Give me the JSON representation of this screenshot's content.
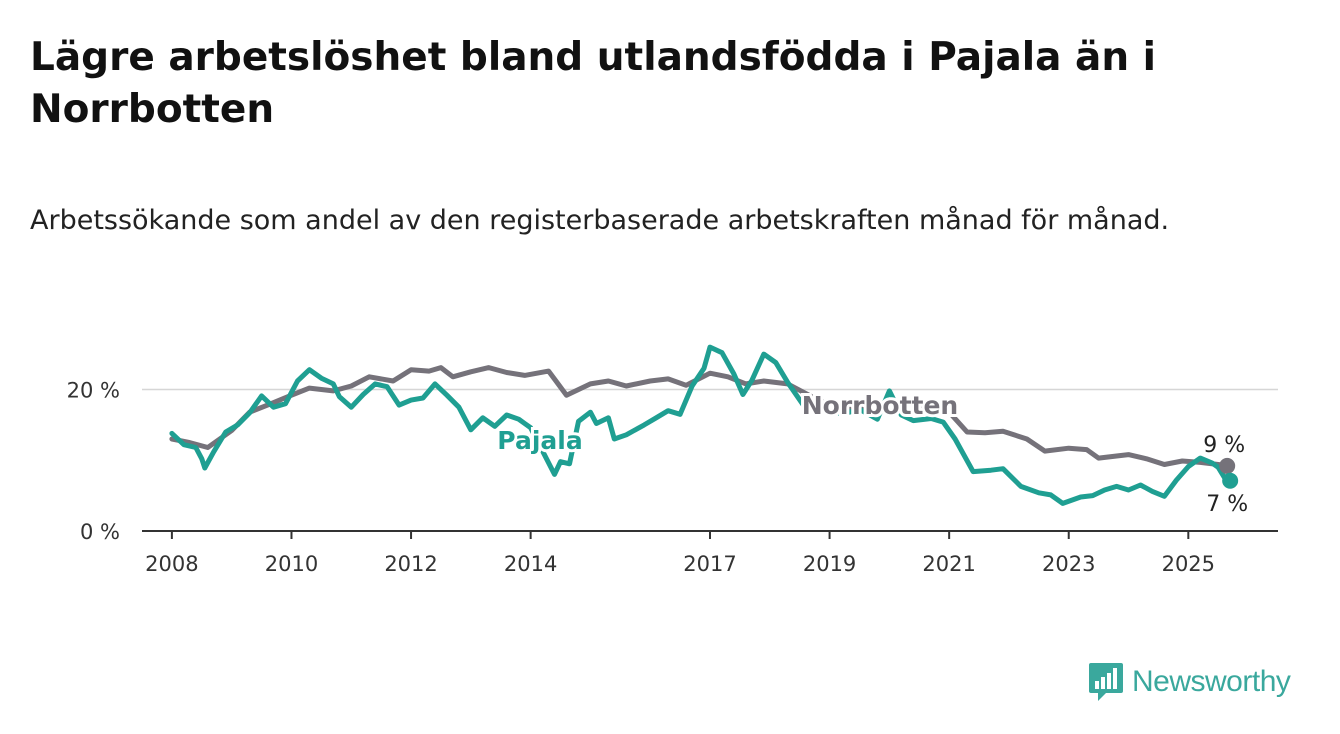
{
  "chart_data": {
    "type": "line",
    "title": "Lägre arbetslöshet bland utlandsfödda i Pajala än i Norrbotten",
    "subtitle": "Arbetssökande som andel av den registerbaserade arbetskraften månad för månad.",
    "xlabel": "",
    "ylabel": "",
    "x_ticks": [
      "2008",
      "2010",
      "2012",
      "2014",
      "2017",
      "2019",
      "2021",
      "2023",
      "2025"
    ],
    "y_ticks": [
      "0 %",
      "20 %"
    ],
    "ylim": [
      0,
      27
    ],
    "xlim": [
      2007.5,
      2026.5
    ],
    "grid": "horizontal",
    "series": [
      {
        "name": "Norrbotten",
        "color": "#75727a",
        "end_label": "9 %",
        "points": [
          [
            2008.0,
            13.0
          ],
          [
            2008.3,
            12.5
          ],
          [
            2008.6,
            11.8
          ],
          [
            2009.0,
            14.2
          ],
          [
            2009.3,
            16.8
          ],
          [
            2009.6,
            17.8
          ],
          [
            2010.0,
            19.2
          ],
          [
            2010.3,
            20.2
          ],
          [
            2010.7,
            19.8
          ],
          [
            2011.0,
            20.5
          ],
          [
            2011.3,
            21.8
          ],
          [
            2011.7,
            21.2
          ],
          [
            2012.0,
            22.8
          ],
          [
            2012.3,
            22.6
          ],
          [
            2012.5,
            23.1
          ],
          [
            2012.7,
            21.8
          ],
          [
            2013.0,
            22.5
          ],
          [
            2013.3,
            23.1
          ],
          [
            2013.6,
            22.4
          ],
          [
            2013.9,
            22.0
          ],
          [
            2014.3,
            22.6
          ],
          [
            2014.6,
            19.2
          ],
          [
            2015.0,
            20.8
          ],
          [
            2015.3,
            21.2
          ],
          [
            2015.6,
            20.5
          ],
          [
            2016.0,
            21.2
          ],
          [
            2016.3,
            21.5
          ],
          [
            2016.6,
            20.6
          ],
          [
            2017.0,
            22.3
          ],
          [
            2017.3,
            21.8
          ],
          [
            2017.6,
            20.8
          ],
          [
            2017.9,
            21.2
          ],
          [
            2018.3,
            20.8
          ],
          [
            2018.7,
            19.0
          ],
          [
            2019.0,
            17.8
          ],
          [
            2019.4,
            17.3
          ],
          [
            2019.8,
            17.8
          ],
          [
            2020.2,
            18.2
          ],
          [
            2020.6,
            17.6
          ],
          [
            2021.0,
            16.8
          ],
          [
            2021.3,
            14.0
          ],
          [
            2021.6,
            13.9
          ],
          [
            2021.9,
            14.1
          ],
          [
            2022.3,
            13.0
          ],
          [
            2022.6,
            11.3
          ],
          [
            2023.0,
            11.7
          ],
          [
            2023.3,
            11.5
          ],
          [
            2023.5,
            10.3
          ],
          [
            2023.8,
            10.6
          ],
          [
            2024.0,
            10.8
          ],
          [
            2024.3,
            10.2
          ],
          [
            2024.6,
            9.4
          ],
          [
            2024.9,
            9.9
          ],
          [
            2025.2,
            9.7
          ],
          [
            2025.5,
            9.4
          ],
          [
            2025.65,
            9.2
          ]
        ]
      },
      {
        "name": "Pajala",
        "color": "#1f9f92",
        "end_label": "7 %",
        "points": [
          [
            2008.0,
            13.8
          ],
          [
            2008.2,
            12.2
          ],
          [
            2008.4,
            11.8
          ],
          [
            2008.5,
            10.2
          ],
          [
            2008.55,
            8.9
          ],
          [
            2008.7,
            11.2
          ],
          [
            2008.9,
            14.0
          ],
          [
            2009.1,
            15.0
          ],
          [
            2009.3,
            16.7
          ],
          [
            2009.5,
            19.1
          ],
          [
            2009.7,
            17.5
          ],
          [
            2009.9,
            18.0
          ],
          [
            2010.1,
            21.2
          ],
          [
            2010.3,
            22.8
          ],
          [
            2010.5,
            21.6
          ],
          [
            2010.7,
            20.8
          ],
          [
            2010.8,
            19.0
          ],
          [
            2011.0,
            17.5
          ],
          [
            2011.2,
            19.3
          ],
          [
            2011.4,
            20.8
          ],
          [
            2011.6,
            20.4
          ],
          [
            2011.8,
            17.8
          ],
          [
            2012.0,
            18.5
          ],
          [
            2012.2,
            18.8
          ],
          [
            2012.4,
            20.8
          ],
          [
            2012.6,
            19.2
          ],
          [
            2012.8,
            17.5
          ],
          [
            2013.0,
            14.3
          ],
          [
            2013.2,
            16.0
          ],
          [
            2013.4,
            14.8
          ],
          [
            2013.6,
            16.4
          ],
          [
            2013.8,
            15.8
          ],
          [
            2013.9,
            15.2
          ],
          [
            2014.0,
            14.6
          ],
          [
            2014.4,
            8.0
          ],
          [
            2014.5,
            9.8
          ],
          [
            2014.65,
            9.5
          ],
          [
            2014.8,
            15.5
          ],
          [
            2015.0,
            16.8
          ],
          [
            2015.1,
            15.2
          ],
          [
            2015.3,
            16.0
          ],
          [
            2015.4,
            13.0
          ],
          [
            2015.6,
            13.6
          ],
          [
            2015.9,
            15.0
          ],
          [
            2016.1,
            16.0
          ],
          [
            2016.3,
            17.0
          ],
          [
            2016.5,
            16.5
          ],
          [
            2016.7,
            20.5
          ],
          [
            2016.9,
            23.0
          ],
          [
            2017.0,
            26.0
          ],
          [
            2017.2,
            25.2
          ],
          [
            2017.4,
            22.2
          ],
          [
            2017.55,
            19.3
          ],
          [
            2017.7,
            21.3
          ],
          [
            2017.9,
            25.0
          ],
          [
            2018.1,
            23.8
          ],
          [
            2018.3,
            21.0
          ],
          [
            2018.6,
            17.3
          ],
          [
            2018.9,
            17.8
          ],
          [
            2019.2,
            16.5
          ],
          [
            2019.5,
            17.2
          ],
          [
            2019.8,
            15.8
          ],
          [
            2020.0,
            19.8
          ],
          [
            2020.2,
            16.4
          ],
          [
            2020.4,
            15.6
          ],
          [
            2020.7,
            15.9
          ],
          [
            2020.9,
            15.4
          ],
          [
            2021.1,
            13.0
          ],
          [
            2021.4,
            8.4
          ],
          [
            2021.7,
            8.6
          ],
          [
            2021.9,
            8.8
          ],
          [
            2022.2,
            6.3
          ],
          [
            2022.5,
            5.4
          ],
          [
            2022.7,
            5.1
          ],
          [
            2022.9,
            3.9
          ],
          [
            2023.2,
            4.8
          ],
          [
            2023.4,
            5.0
          ],
          [
            2023.6,
            5.8
          ],
          [
            2023.8,
            6.3
          ],
          [
            2024.0,
            5.8
          ],
          [
            2024.2,
            6.5
          ],
          [
            2024.4,
            5.6
          ],
          [
            2024.6,
            4.9
          ],
          [
            2024.8,
            7.2
          ],
          [
            2025.0,
            9.1
          ],
          [
            2025.2,
            10.3
          ],
          [
            2025.4,
            9.6
          ],
          [
            2025.5,
            9.0
          ],
          [
            2025.6,
            7.6
          ],
          [
            2025.7,
            7.1
          ]
        ]
      }
    ]
  },
  "brand": {
    "name": "Newsworthy",
    "color": "#3aa89d"
  }
}
